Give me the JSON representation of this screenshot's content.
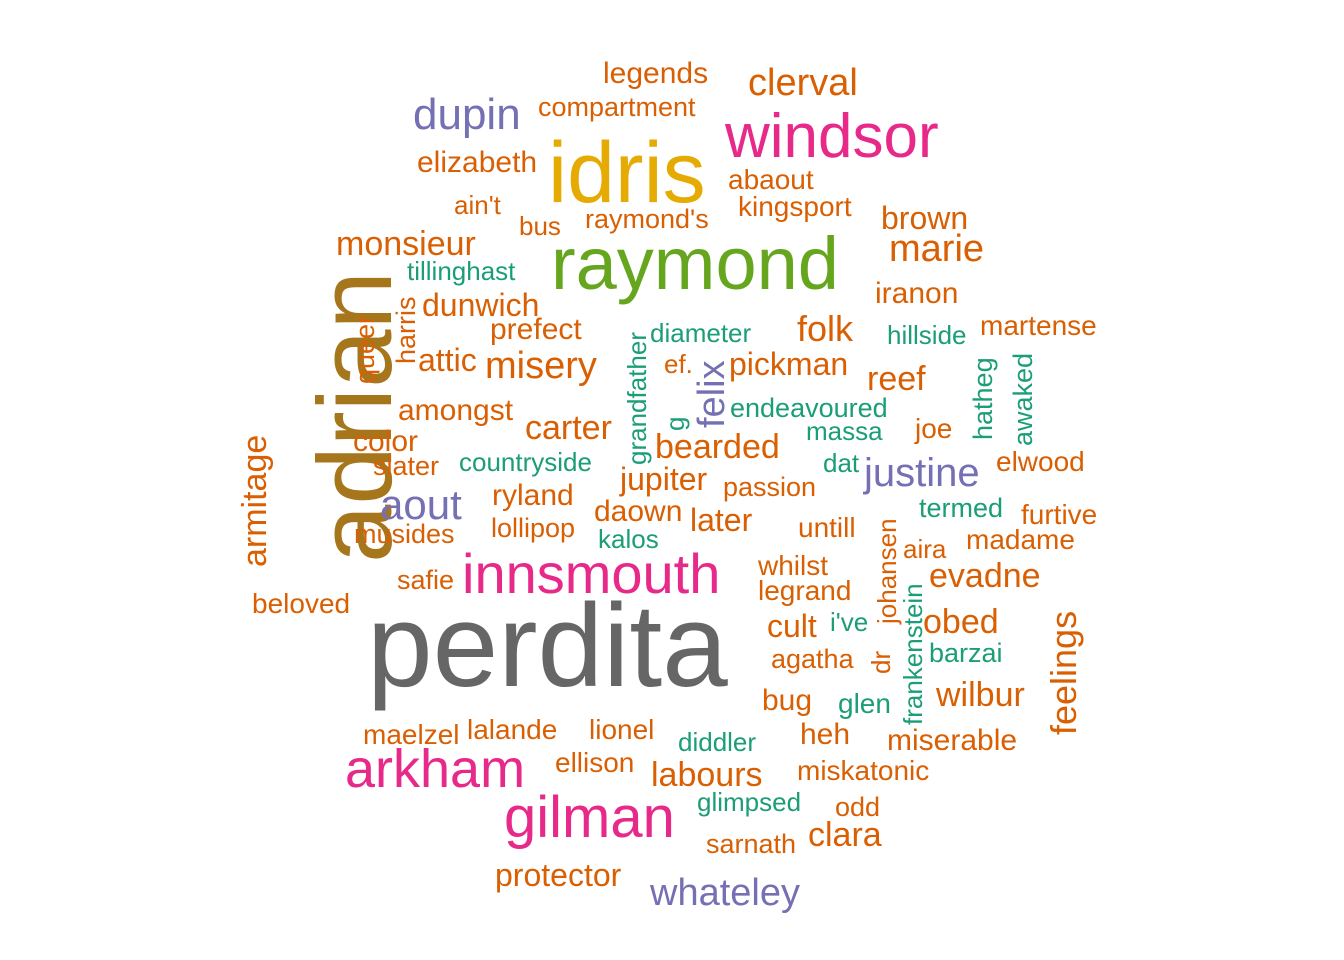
{
  "palette": {
    "orange": "#D95F02",
    "teal": "#1B9E77",
    "purple": "#7570B3",
    "pink": "#E7298A",
    "green": "#66A61E",
    "gold": "#E6AB02",
    "brown": "#A6761D",
    "gray": "#666666"
  },
  "words": [
    {
      "text": "perdita",
      "color": "gray"
    },
    {
      "text": "adrian",
      "color": "brown"
    },
    {
      "text": "raymond",
      "color": "green"
    },
    {
      "text": "idris",
      "color": "gold"
    },
    {
      "text": "windsor",
      "color": "pink"
    },
    {
      "text": "innsmouth",
      "color": "pink"
    },
    {
      "text": "arkham",
      "color": "pink"
    },
    {
      "text": "gilman",
      "color": "pink"
    },
    {
      "text": "dupin",
      "color": "purple"
    },
    {
      "text": "aout",
      "color": "purple"
    },
    {
      "text": "justine",
      "color": "purple"
    },
    {
      "text": "whateley",
      "color": "purple"
    },
    {
      "text": "felix",
      "color": "purple"
    },
    {
      "text": "clerval",
      "color": "orange"
    },
    {
      "text": "legends",
      "color": "orange"
    },
    {
      "text": "compartment",
      "color": "orange"
    },
    {
      "text": "elizabeth",
      "color": "orange"
    },
    {
      "text": "abaout",
      "color": "orange"
    },
    {
      "text": "ain't",
      "color": "orange"
    },
    {
      "text": "bus",
      "color": "orange"
    },
    {
      "text": "raymond's",
      "color": "orange"
    },
    {
      "text": "kingsport",
      "color": "orange"
    },
    {
      "text": "brown",
      "color": "orange"
    },
    {
      "text": "monsieur",
      "color": "orange"
    },
    {
      "text": "marie",
      "color": "orange"
    },
    {
      "text": "tillinghast",
      "color": "teal"
    },
    {
      "text": "iranon",
      "color": "orange"
    },
    {
      "text": "dunwich",
      "color": "orange"
    },
    {
      "text": "harris",
      "color": "orange"
    },
    {
      "text": "queer",
      "color": "orange"
    },
    {
      "text": "prefect",
      "color": "orange"
    },
    {
      "text": "grandfather",
      "color": "teal"
    },
    {
      "text": "diameter",
      "color": "teal"
    },
    {
      "text": "folk",
      "color": "orange"
    },
    {
      "text": "hillside",
      "color": "teal"
    },
    {
      "text": "martense",
      "color": "orange"
    },
    {
      "text": "attic",
      "color": "orange"
    },
    {
      "text": "misery",
      "color": "orange"
    },
    {
      "text": "ef.",
      "color": "orange"
    },
    {
      "text": "pickman",
      "color": "orange"
    },
    {
      "text": "reef",
      "color": "orange"
    },
    {
      "text": "hatheg",
      "color": "teal"
    },
    {
      "text": "awaked",
      "color": "teal"
    },
    {
      "text": "amongst",
      "color": "orange"
    },
    {
      "text": "endeavoured",
      "color": "teal"
    },
    {
      "text": "armitage",
      "color": "orange"
    },
    {
      "text": "color",
      "color": "orange"
    },
    {
      "text": "carter",
      "color": "orange"
    },
    {
      "text": "g",
      "color": "teal"
    },
    {
      "text": "bearded",
      "color": "orange"
    },
    {
      "text": "massa",
      "color": "teal"
    },
    {
      "text": "joe",
      "color": "orange"
    },
    {
      "text": "slater",
      "color": "orange"
    },
    {
      "text": "countryside",
      "color": "teal"
    },
    {
      "text": "dat",
      "color": "teal"
    },
    {
      "text": "elwood",
      "color": "orange"
    },
    {
      "text": "jupiter",
      "color": "orange"
    },
    {
      "text": "passion",
      "color": "orange"
    },
    {
      "text": "ryland",
      "color": "orange"
    },
    {
      "text": "termed",
      "color": "teal"
    },
    {
      "text": "furtive",
      "color": "orange"
    },
    {
      "text": "daown",
      "color": "orange"
    },
    {
      "text": "later",
      "color": "orange"
    },
    {
      "text": "lollipop",
      "color": "orange"
    },
    {
      "text": "untill",
      "color": "orange"
    },
    {
      "text": "johansen",
      "color": "orange"
    },
    {
      "text": "musides",
      "color": "orange"
    },
    {
      "text": "kalos",
      "color": "teal"
    },
    {
      "text": "aira",
      "color": "orange"
    },
    {
      "text": "madame",
      "color": "orange"
    },
    {
      "text": "whilst",
      "color": "orange"
    },
    {
      "text": "safie",
      "color": "orange"
    },
    {
      "text": "frankenstein",
      "color": "teal"
    },
    {
      "text": "evadne",
      "color": "orange"
    },
    {
      "text": "legrand",
      "color": "orange"
    },
    {
      "text": "beloved",
      "color": "orange"
    },
    {
      "text": "feelings",
      "color": "orange"
    },
    {
      "text": "cult",
      "color": "orange"
    },
    {
      "text": "i've",
      "color": "teal"
    },
    {
      "text": "obed",
      "color": "orange"
    },
    {
      "text": "agatha",
      "color": "orange"
    },
    {
      "text": "dr",
      "color": "orange"
    },
    {
      "text": "barzai",
      "color": "teal"
    },
    {
      "text": "wilbur",
      "color": "orange"
    },
    {
      "text": "bug",
      "color": "orange"
    },
    {
      "text": "glen",
      "color": "teal"
    },
    {
      "text": "maelzel",
      "color": "orange"
    },
    {
      "text": "lalande",
      "color": "orange"
    },
    {
      "text": "lionel",
      "color": "orange"
    },
    {
      "text": "heh",
      "color": "orange"
    },
    {
      "text": "miserable",
      "color": "orange"
    },
    {
      "text": "diddler",
      "color": "teal"
    },
    {
      "text": "ellison",
      "color": "orange"
    },
    {
      "text": "labours",
      "color": "orange"
    },
    {
      "text": "miskatonic",
      "color": "orange"
    },
    {
      "text": "glimpsed",
      "color": "teal"
    },
    {
      "text": "odd",
      "color": "orange"
    },
    {
      "text": "clara",
      "color": "orange"
    },
    {
      "text": "sarnath",
      "color": "orange"
    },
    {
      "text": "protector",
      "color": "orange"
    }
  ]
}
